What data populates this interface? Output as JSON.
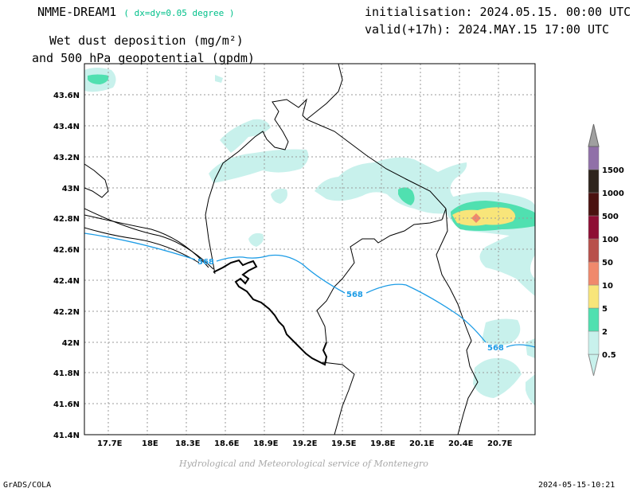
{
  "header": {
    "model": "NMME-DREAM1",
    "resolution": "( dx=dy=0.05 degree )",
    "init": "initialisation: 2024.05.15. 00:00 UTC",
    "valid": "valid(+17h): 2024.MAY.15 17:00 UTC",
    "variable_line1": "Wet dust deposition (mg/m²)",
    "variable_line2": "and 500 hPa geopotential (gpdm)"
  },
  "map": {
    "lon_ticks": [
      "17.7E",
      "18E",
      "18.3E",
      "18.6E",
      "18.9E",
      "19.2E",
      "19.5E",
      "19.8E",
      "20.1E",
      "20.4E",
      "20.7E"
    ],
    "lat_ticks": [
      "43.6N",
      "43.4N",
      "43.2N",
      "43N",
      "42.8N",
      "42.6N",
      "42.4N",
      "42.2N",
      "42N",
      "41.8N",
      "41.6N",
      "41.4N"
    ],
    "contour_labels": [
      "568",
      "568",
      "568"
    ],
    "grid": "dotted"
  },
  "legend": {
    "labels": [
      "0.5",
      "2",
      "5",
      "10",
      "50",
      "100",
      "500",
      "1000",
      "1500"
    ],
    "colors": [
      "#c8f1ec",
      "#50e0b0",
      "#f8e57a",
      "#f0896c",
      "#b8504a",
      "#8e0e34",
      "#4a1210",
      "#2e241c",
      "#9070a8",
      "#a0a0a0"
    ]
  },
  "footer": {
    "credit": "Hydrological and Meteorological service of Montenegro",
    "software": "GrADS/COLA",
    "timestamp": "2024-05-15-10:21"
  }
}
